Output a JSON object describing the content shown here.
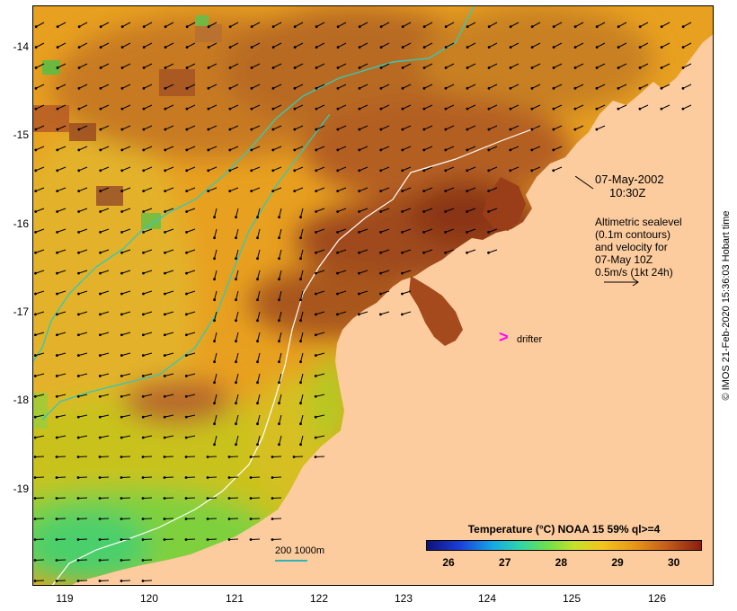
{
  "date": {
    "day": "07-May-2002",
    "time": "10:30Z"
  },
  "altimetry_note": [
    "Altimetric sealevel",
    "(0.1m contours)",
    "and velocity for",
    "07-May 10Z",
    "0.5m/s (1kt 24h)"
  ],
  "drifter": {
    "marker": ">",
    "label": "drifter"
  },
  "depth_scale": {
    "label": "200  1000m"
  },
  "legend": {
    "title": "Temperature (°C) NOAA 15 59% ql>=4",
    "ticks": [
      {
        "label": "26",
        "value": 26
      },
      {
        "label": "27",
        "value": 27
      },
      {
        "label": "28",
        "value": 28
      },
      {
        "label": "29",
        "value": 29
      },
      {
        "label": "30",
        "value": 30
      }
    ],
    "range": [
      25.6,
      30.5
    ]
  },
  "axes": {
    "latitudes": [
      "-14",
      "-15",
      "-16",
      "-17",
      "-18",
      "-19"
    ],
    "longitudes": [
      "119",
      "120",
      "121",
      "122",
      "123",
      "124",
      "125",
      "126"
    ]
  },
  "credit": "© IMOS 21-Feb-2020 15:36:03 Hobart time",
  "colors": {
    "land": "#fccb9e",
    "ocean_base": "#e59a1a",
    "warm": "#a64c1e",
    "cool": "#4fcf4f",
    "isobath_200": "#ffffff",
    "isobath_1000": "#35c9b5",
    "drifter": "#ff00ff"
  }
}
